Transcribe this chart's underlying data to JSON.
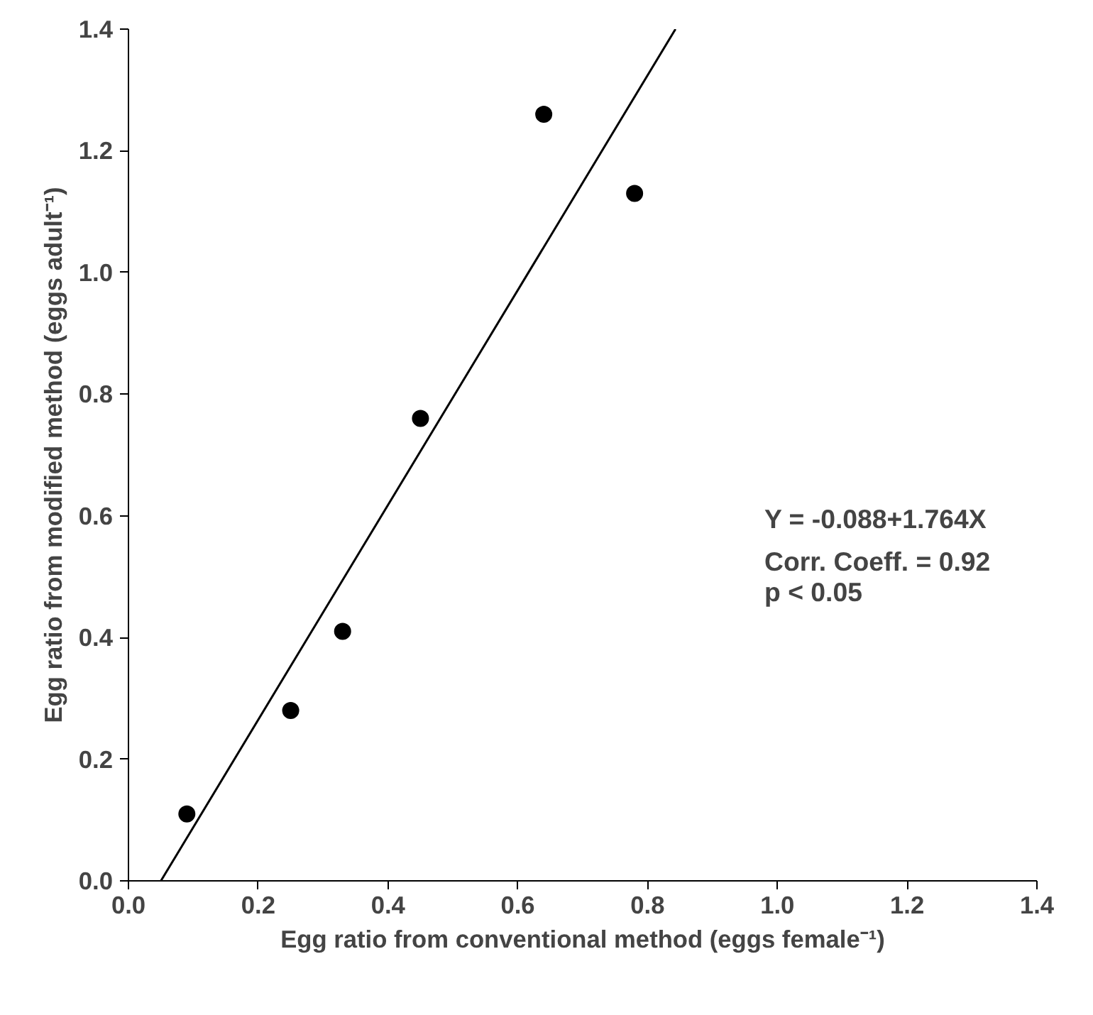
{
  "chart_data": {
    "type": "scatter",
    "xlabel": "Egg ratio from conventional method (eggs female⁻¹)",
    "ylabel": "Egg ratio from modified method (eggs adult⁻¹)",
    "series": [
      {
        "marker": "circle",
        "color": "#000000",
        "x": [
          0.09,
          0.25,
          0.33,
          0.45,
          0.64,
          0.78
        ],
        "values": [
          0.11,
          0.28,
          0.41,
          0.76,
          1.26,
          1.13
        ]
      },
      {
        "type": "line",
        "marker": "none",
        "color": "#000000",
        "x": [
          0.05,
          0.843
        ],
        "values": [
          0.0,
          1.4
        ]
      }
    ],
    "xlim": [
      0,
      1.4
    ],
    "ylim": [
      0,
      1.4
    ],
    "xticks": [
      {
        "value": 0,
        "label": "0.0"
      },
      {
        "value": 0.2,
        "label": "0.2"
      },
      {
        "value": 0.4,
        "label": "0.4"
      },
      {
        "value": 0.6,
        "label": "0.6"
      },
      {
        "value": 0.8,
        "label": "0.8"
      },
      {
        "value": 1.0,
        "label": "1.0"
      },
      {
        "value": 1.2,
        "label": "1.2"
      },
      {
        "value": 1.4,
        "label": "1.4"
      }
    ],
    "yticks": [
      {
        "value": 0,
        "label": "0.0"
      },
      {
        "value": 0.2,
        "label": "0.2"
      },
      {
        "value": 0.4,
        "label": "0.4"
      },
      {
        "value": 0.6,
        "label": "0.6"
      },
      {
        "value": 0.8,
        "label": "0.8"
      },
      {
        "value": 1.0,
        "label": "1.0"
      },
      {
        "value": 1.2,
        "label": "1.2"
      },
      {
        "value": 1.4,
        "label": "1.4"
      }
    ],
    "annotations": [
      "Y = -0.088+1.764X",
      "Corr. Coeff. = 0.92",
      "p < 0.05"
    ],
    "grid": false
  }
}
